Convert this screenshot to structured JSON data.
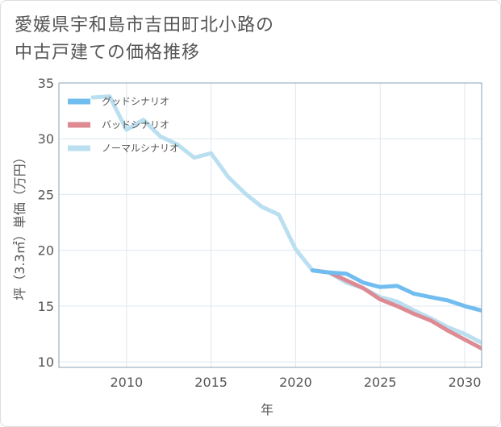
{
  "title_lines": [
    "愛媛県宇和島市吉田町北小路の",
    "中古戸建ての価格推移"
  ],
  "chart_data": {
    "type": "line",
    "title": "愛媛県宇和島市吉田町北小路の中古戸建ての価格推移",
    "xlabel": "年",
    "ylabel": "坪（3.3㎡）単価（万円）",
    "xlim": [
      2006,
      2031
    ],
    "ylim": [
      9.5,
      35
    ],
    "xticks": [
      2010,
      2015,
      2020,
      2025,
      2030
    ],
    "yticks": [
      10,
      15,
      20,
      25,
      30,
      35
    ],
    "grid": true,
    "legend_position": "top-left",
    "series": [
      {
        "name": "グッドシナリオ",
        "color": "#72bdf0",
        "x": [
          2021,
          2022,
          2023,
          2024,
          2025,
          2026,
          2027,
          2028,
          2029,
          2030,
          2031
        ],
        "y": [
          18.2,
          18.0,
          17.9,
          17.1,
          16.7,
          16.8,
          16.1,
          15.8,
          15.5,
          15.0,
          14.6
        ]
      },
      {
        "name": "バッドシナリオ",
        "color": "#dd8a93",
        "x": [
          2021,
          2022,
          2023,
          2024,
          2025,
          2026,
          2027,
          2028,
          2029,
          2030,
          2031
        ],
        "y": [
          18.2,
          18.0,
          17.3,
          16.6,
          15.6,
          15.0,
          14.3,
          13.7,
          12.8,
          12.0,
          11.2
        ]
      },
      {
        "name": "ノーマルシナリオ",
        "color": "#badff0",
        "x": [
          2008,
          2009,
          2010,
          2011,
          2012,
          2013,
          2014,
          2015,
          2016,
          2017,
          2018,
          2019,
          2020,
          2021,
          2022,
          2023,
          2024,
          2025,
          2026,
          2027,
          2028,
          2029,
          2030,
          2031
        ],
        "y": [
          33.7,
          33.8,
          30.8,
          31.7,
          30.2,
          29.5,
          28.3,
          28.7,
          26.6,
          25.1,
          23.9,
          23.2,
          20.1,
          18.2,
          18.0,
          17.1,
          16.6,
          15.8,
          15.4,
          14.6,
          13.9,
          13.1,
          12.5,
          11.7
        ]
      }
    ]
  }
}
